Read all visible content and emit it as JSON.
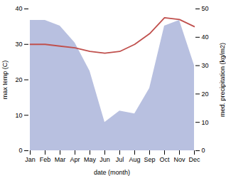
{
  "chart_data": {
    "type": "line",
    "categories": [
      "Jan",
      "Feb",
      "Mar",
      "Apr",
      "May",
      "Jun",
      "Jul",
      "Aug",
      "Sep",
      "Oct",
      "Nov",
      "Dec"
    ],
    "xlabel": "date (month)",
    "ylabel": "max temp (C)",
    "y2label": "med. precipitation (kg/m2)",
    "ylim": [
      0,
      40
    ],
    "yticks": [
      0,
      10,
      20,
      30,
      40
    ],
    "y2lim": [
      0,
      50
    ],
    "y2ticks": [
      0,
      10,
      20,
      30,
      40,
      50
    ],
    "grid": false,
    "series": [
      {
        "name": "med. precipitation (kg/m2)",
        "type": "area",
        "axis": "y2",
        "color": "#b8c0e0",
        "values": [
          46,
          46,
          44,
          38,
          28,
          10,
          14,
          13,
          22,
          44,
          46,
          30
        ]
      },
      {
        "name": "max temp (C)",
        "type": "line",
        "color": "#c0504d",
        "values": [
          30.0,
          30.0,
          29.5,
          29.0,
          28.0,
          27.5,
          28.0,
          30.0,
          33.0,
          37.5,
          37.0,
          35.0
        ]
      }
    ]
  }
}
